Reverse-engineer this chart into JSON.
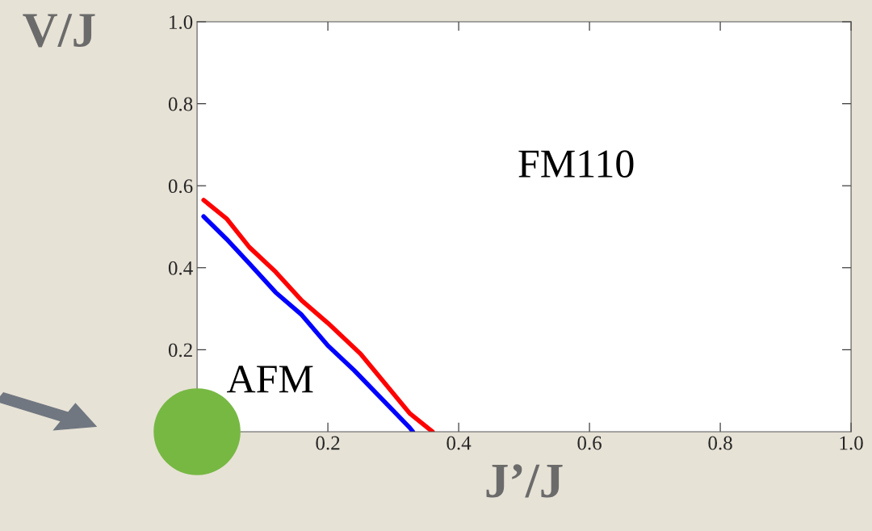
{
  "chart_data": {
    "type": "line",
    "xlabel": "J’/J",
    "ylabel": "V/J",
    "xlim": [
      0,
      1
    ],
    "ylim": [
      0,
      1
    ],
    "xticks": [
      0.2,
      0.4,
      0.6,
      0.8,
      {
        "value": 1,
        "label": "1.0"
      }
    ],
    "yticks": [
      0.2,
      0.4,
      0.6,
      0.8,
      {
        "value": 1,
        "label": "1.0"
      }
    ],
    "x": [
      0.01,
      0.045,
      0.08,
      0.12,
      0.16,
      0.2,
      0.25,
      0.325,
      0.36
    ],
    "series": [
      {
        "color": "#ff0000",
        "values": [
          0.565,
          0.52,
          0.45,
          0.39,
          0.32,
          0.265,
          0.19,
          0.045,
          0.0
        ]
      },
      {
        "type": "scatter",
        "color": "#77b843",
        "marker": "circle",
        "x": [
          0
        ],
        "values": [
          0
        ]
      },
      {
        "color": "#0000ff",
        "x": [
          0.01,
          0.045,
          0.08,
          0.12,
          0.16,
          0.2,
          0.24,
          0.325,
          0.33
        ],
        "values": [
          0.525,
          0.47,
          0.41,
          0.34,
          0.285,
          0.21,
          0.15,
          0.01,
          0.0
        ]
      }
    ],
    "annotations": [
      "FM110",
      "AFM"
    ],
    "grid": false,
    "legend": false,
    "marker": "none",
    "line_style": "solid"
  }
}
